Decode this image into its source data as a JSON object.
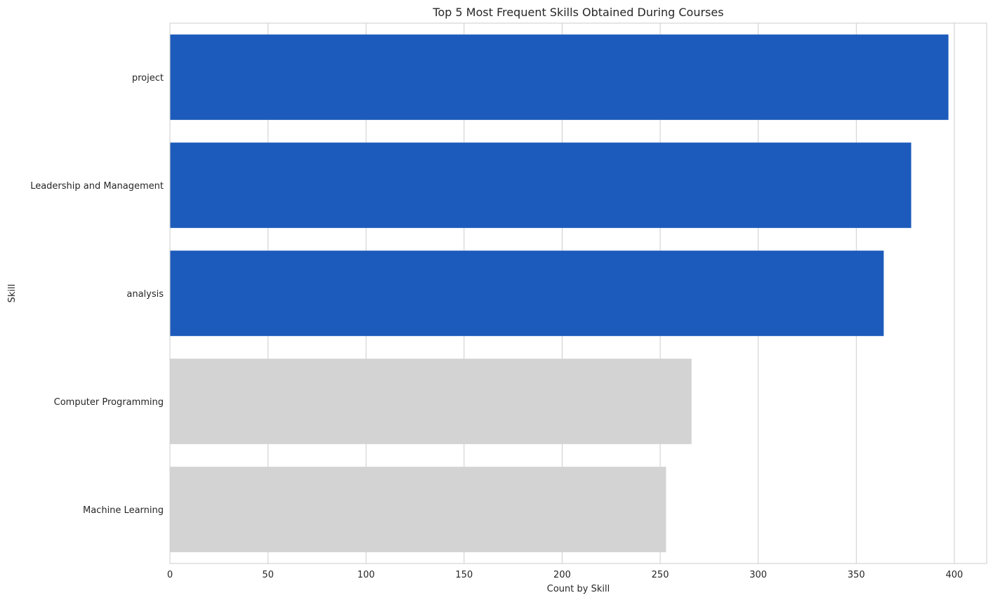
{
  "chart_data": {
    "type": "bar",
    "orientation": "horizontal",
    "title": "Top 5 Most Frequent Skills Obtained During Courses",
    "xlabel": "Count by Skill",
    "ylabel": "Skill",
    "categories": [
      "project",
      "Leadership and Management",
      "analysis",
      "Computer Programming",
      "Machine Learning"
    ],
    "values": [
      397,
      378,
      364,
      266,
      253
    ],
    "bar_colors": [
      "#1c5bbb",
      "#1c5bbb",
      "#1c5bbb",
      "#d3d3d3",
      "#d3d3d3"
    ],
    "xlim": [
      0,
      416.5
    ],
    "xticks": [
      0,
      50,
      100,
      150,
      200,
      250,
      300,
      350,
      400
    ],
    "grid": true
  }
}
